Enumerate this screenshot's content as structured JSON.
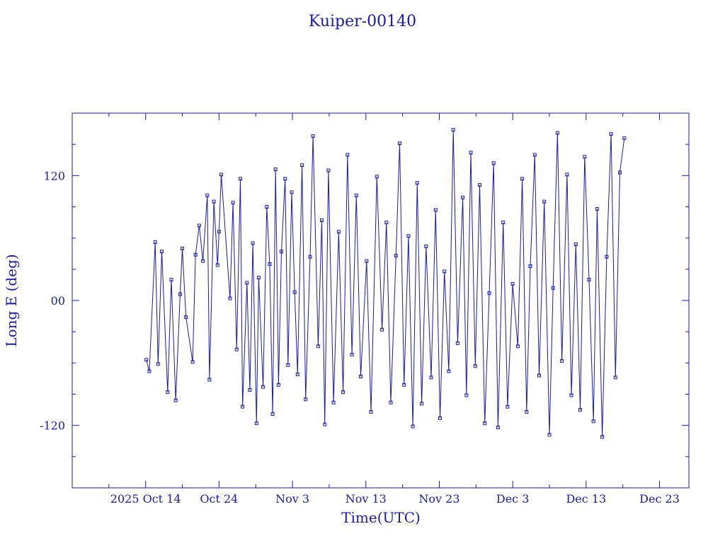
{
  "chart_data": {
    "type": "line",
    "title": "Kuiper-00140",
    "xlabel": "Time(UTC)",
    "ylabel": "Long E (deg)",
    "x_ticks": [
      "2025 Oct 14",
      "Oct 24",
      "Nov  3",
      "Nov 13",
      "Nov 23",
      "Dec  3",
      "Dec 13",
      "Dec 23"
    ],
    "x_tick_days": [
      10,
      20,
      30,
      40,
      50,
      60,
      70,
      80
    ],
    "y_ticks": [
      "-120",
      "00",
      "120"
    ],
    "y_tick_values": [
      -120,
      0,
      120
    ],
    "xlim": [
      0,
      84
    ],
    "ylim": [
      -180,
      180
    ],
    "series": [
      {
        "x": [
          10.1,
          10.5,
          11.3,
          11.7,
          12.2,
          13.0,
          13.5,
          14.1,
          14.7,
          15.0,
          15.5,
          16.4,
          16.8,
          17.3,
          17.8,
          18.4,
          18.7,
          19.3,
          19.8,
          20.0,
          20.3,
          21.5,
          21.9,
          22.4,
          22.9,
          23.2,
          23.8,
          24.2,
          24.6,
          25.1,
          25.4,
          26.0,
          26.5,
          26.9,
          27.3,
          27.7,
          28.1,
          28.5,
          29.0,
          29.4,
          29.9,
          30.3,
          30.7,
          31.3,
          31.8,
          32.4,
          32.8,
          33.5,
          34.0,
          34.4,
          34.9,
          35.6,
          36.3,
          36.9,
          37.5,
          38.1,
          38.7,
          39.3,
          40.1,
          40.7,
          41.5,
          42.2,
          42.8,
          43.4,
          44.1,
          44.6,
          45.2,
          45.8,
          46.4,
          47.0,
          47.6,
          48.2,
          48.9,
          49.5,
          50.1,
          50.7,
          51.3,
          51.9,
          52.5,
          53.2,
          53.7,
          54.3,
          54.9,
          55.5,
          56.2,
          56.8,
          57.4,
          58.0,
          58.7,
          59.3,
          60.0,
          60.7,
          61.3,
          61.9,
          62.4,
          63.0,
          63.6,
          64.3,
          65.0,
          65.5,
          66.1,
          66.7,
          67.4,
          68.0,
          68.6,
          69.2,
          69.8,
          70.4,
          71.0,
          71.5,
          72.2,
          72.8,
          73.4,
          74.0,
          74.6,
          75.2
        ],
        "y": [
          -57,
          -68,
          56,
          -61,
          47,
          -88,
          20,
          -96,
          6,
          50,
          -16,
          -59,
          44,
          72,
          38,
          101,
          -76,
          95,
          34,
          66,
          121,
          2,
          94,
          -47,
          117,
          -102,
          17,
          -86,
          55,
          -118,
          22,
          -83,
          90,
          35,
          -109,
          126,
          -81,
          47,
          117,
          -62,
          104,
          8,
          -71,
          130,
          -95,
          42,
          158,
          -44,
          77,
          -119,
          125,
          -98,
          66,
          -88,
          140,
          -52,
          101,
          -73,
          38,
          -107,
          119,
          -28,
          75,
          -98,
          43,
          151,
          -81,
          62,
          -121,
          113,
          -99,
          52,
          -74,
          87,
          -113,
          28,
          -68,
          164,
          -41,
          99,
          -91,
          142,
          -63,
          111,
          -118,
          7,
          132,
          -122,
          75,
          -102,
          16,
          -44,
          117,
          -107,
          33,
          140,
          -72,
          95,
          -129,
          12,
          161,
          -58,
          121,
          -91,
          54,
          -105,
          138,
          20,
          -116,
          88,
          -131,
          42,
          160,
          -74,
          123,
          156
        ]
      }
    ]
  }
}
